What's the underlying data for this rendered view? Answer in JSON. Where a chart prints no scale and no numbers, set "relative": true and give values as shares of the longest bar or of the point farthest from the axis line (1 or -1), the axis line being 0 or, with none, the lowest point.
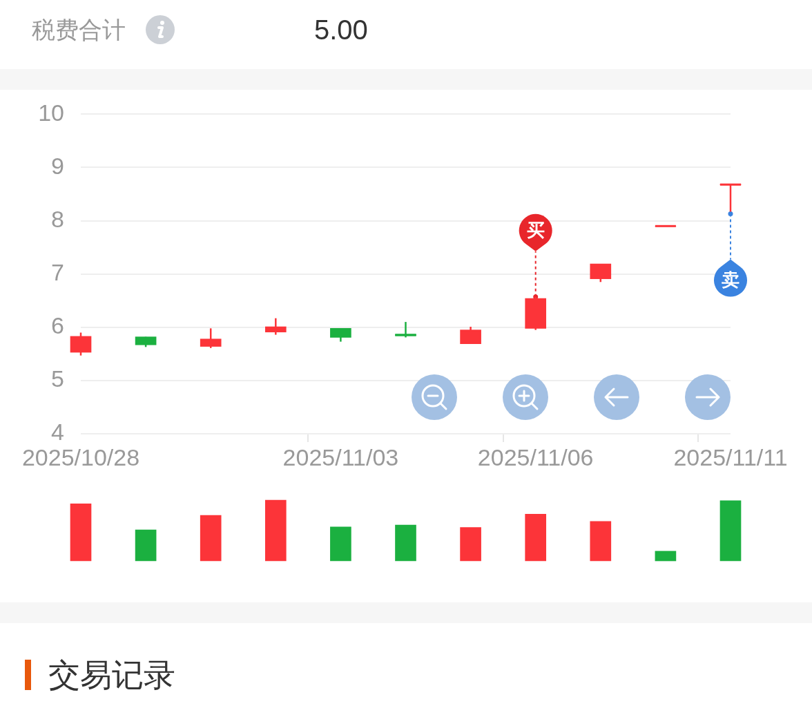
{
  "chart_data": [
    {
      "type": "candlestick",
      "categories": [
        "2025/10/28",
        null,
        null,
        null,
        "2025/11/03",
        null,
        null,
        "2025/11/06",
        null,
        null,
        "2025/11/11"
      ],
      "ohlc": [
        [
          5.53,
          5.9,
          5.47,
          5.83
        ],
        [
          5.82,
          5.82,
          5.63,
          5.67
        ],
        [
          5.64,
          5.98,
          5.61,
          5.78
        ],
        [
          5.91,
          6.17,
          5.86,
          6.01
        ],
        [
          5.98,
          5.98,
          5.73,
          5.81
        ],
        [
          5.87,
          6.1,
          5.81,
          5.84
        ],
        [
          5.69,
          6.01,
          5.69,
          5.95
        ],
        [
          5.98,
          6.57,
          5.95,
          6.54
        ],
        [
          6.91,
          7.19,
          6.85,
          7.19
        ],
        [
          7.9,
          7.9,
          7.9,
          7.9
        ],
        [
          8.67,
          8.69,
          8.17,
          8.69
        ]
      ],
      "colors": [
        "#fc3439",
        "#1bb040",
        "#fc3439",
        "#fc3439",
        "#1bb040",
        "#1bb040",
        "#fc3439",
        "#fc3439",
        "#fc3439",
        "#fc3439",
        "#fc3439"
      ],
      "ylim": [
        4,
        10
      ],
      "yticks": [
        4,
        5,
        6,
        7,
        8,
        9,
        10
      ],
      "grid": "y",
      "annotations": [
        "税费合计",
        "5.00",
        {
          "text": "买",
          "x": "2025/11/06",
          "y": 6.57
        },
        {
          "text": "卖",
          "x": "2025/11/11",
          "y": 8.13
        },
        "交易记录"
      ]
    },
    {
      "type": "bar",
      "relative": true,
      "categories": [
        null,
        null,
        null,
        null,
        null,
        null,
        null,
        null,
        null,
        null,
        null
      ],
      "values": [
        0.94,
        0.51,
        0.75,
        1,
        0.56,
        0.59,
        0.55,
        0.77,
        0.65,
        0.16,
        0.99
      ],
      "colors": [
        "#fc3439",
        "#1bb040",
        "#fc3439",
        "#fc3439",
        "#1bb040",
        "#1bb040",
        "#fc3439",
        "#fc3439",
        "#fc3439",
        "#1bb040",
        "#1bb040"
      ]
    }
  ]
}
